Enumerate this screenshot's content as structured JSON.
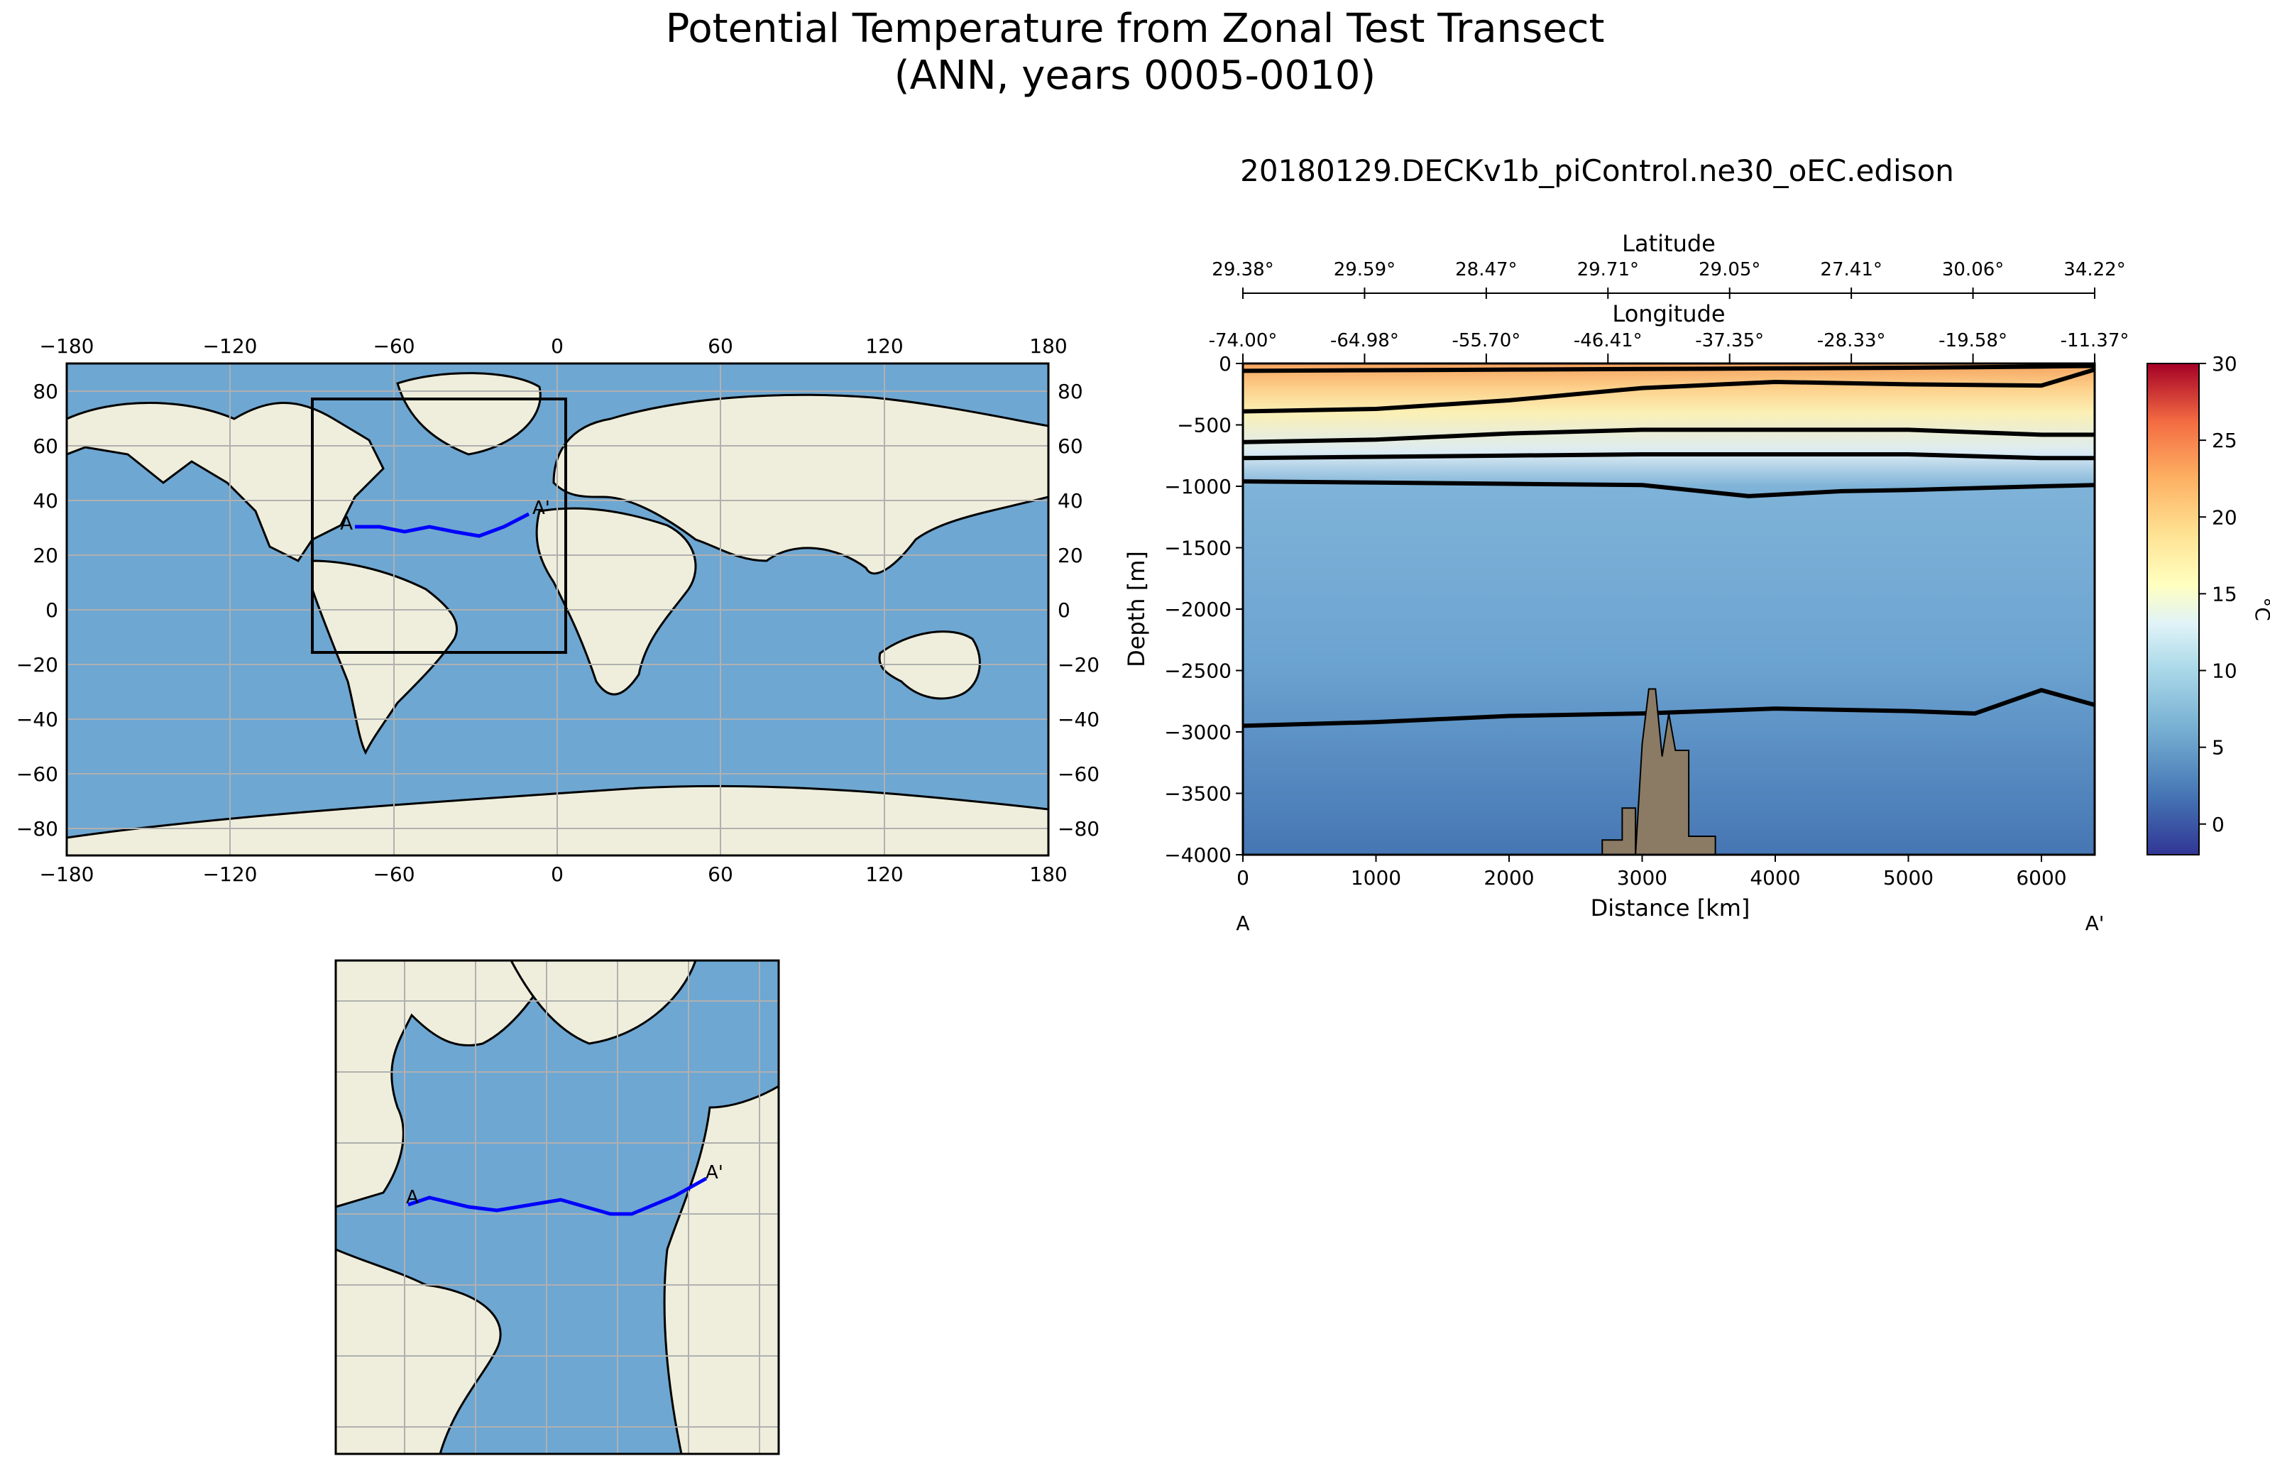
{
  "figure": {
    "title_line1": "Potential Temperature from Zonal Test Transect",
    "title_line2": "(ANN, years 0005-0010)",
    "section_title": "20180129.DECKv1b_piControl.ne30_oEC.edison"
  },
  "colors": {
    "ocean": "#6ea7d2",
    "land": "#efeedc",
    "transect": "#0000ff",
    "bathymetry": "#8b7b64",
    "grid": "#b0b0b0"
  },
  "world_map": {
    "lon_ticks": [
      "−180",
      "−120",
      "−60",
      "0",
      "60",
      "120",
      "180"
    ],
    "lat_ticks": [
      "80",
      "60",
      "40",
      "20",
      "0",
      "−20",
      "−40",
      "−60",
      "−80"
    ],
    "marker_a": "A",
    "marker_a_prime": "A'"
  },
  "inset_map": {
    "marker_a": "A",
    "marker_a_prime": "A'"
  },
  "section_labels": {
    "latitude_label": "Latitude",
    "longitude_label": "Longitude",
    "latitude_ticks": [
      "29.38°",
      "29.59°",
      "28.47°",
      "29.71°",
      "29.05°",
      "27.41°",
      "30.06°",
      "34.22°"
    ],
    "longitude_ticks": [
      "-74.00°",
      "-64.98°",
      "-55.70°",
      "-46.41°",
      "-37.35°",
      "-28.33°",
      "-19.58°",
      "-11.37°"
    ],
    "start_label": "A",
    "end_label": "A'",
    "colorbar_unit": "°C",
    "colorbar_ticks": [
      "30",
      "25",
      "20",
      "15",
      "10",
      "5",
      "0"
    ]
  },
  "chart_data": {
    "type": "heatmap",
    "title": "20180129.DECKv1b_piControl.ne30_oEC.edison",
    "xlabel": "Distance [km]",
    "ylabel": "Depth [m]",
    "xlim": [
      0,
      6400
    ],
    "ylim": [
      -4000,
      0
    ],
    "x_ticks": [
      0,
      1000,
      2000,
      3000,
      4000,
      5000,
      6000
    ],
    "y_ticks": [
      0,
      -500,
      -1000,
      -1500,
      -2000,
      -2500,
      -3000,
      -3500,
      -4000
    ],
    "colorbar": {
      "label": "°C",
      "range": [
        -2,
        30
      ],
      "ticks": [
        0,
        5,
        10,
        15,
        20,
        25,
        30
      ]
    },
    "transect_lon": [
      -74.0,
      -64.98,
      -55.7,
      -46.41,
      -37.35,
      -28.33,
      -19.58,
      -11.37
    ],
    "transect_lat": [
      29.38,
      29.59,
      28.47,
      29.71,
      29.05,
      27.41,
      30.06,
      34.22
    ],
    "contour_lines": [
      {
        "x": [
          0,
          1000,
          2000,
          3000,
          4000,
          5000,
          6000,
          6400
        ],
        "y": [
          -60,
          -55,
          -50,
          -45,
          -40,
          -35,
          -25,
          -20
        ]
      },
      {
        "x": [
          0,
          1000,
          2000,
          3000,
          4000,
          5000,
          6000,
          6400
        ],
        "y": [
          -390,
          -370,
          -300,
          -200,
          -150,
          -170,
          -180,
          -50
        ]
      },
      {
        "x": [
          0,
          1000,
          2000,
          3000,
          4000,
          5000,
          6000,
          6400
        ],
        "y": [
          -640,
          -620,
          -570,
          -540,
          -540,
          -540,
          -580,
          -580
        ]
      },
      {
        "x": [
          0,
          1000,
          2000,
          3000,
          4000,
          5000,
          6000,
          6400
        ],
        "y": [
          -770,
          -760,
          -750,
          -740,
          -740,
          -740,
          -770,
          -770
        ]
      },
      {
        "x": [
          0,
          1000,
          2000,
          3000,
          3800,
          4500,
          5000,
          6000,
          6400
        ],
        "y": [
          -960,
          -970,
          -980,
          -990,
          -1080,
          -1040,
          -1030,
          -1000,
          -990
        ]
      },
      {
        "x": [
          0,
          1000,
          2000,
          3000,
          4000,
          5000,
          5500,
          6000,
          6400
        ],
        "y": [
          -2950,
          -2920,
          -2870,
          -2850,
          -2810,
          -2830,
          -2850,
          -2660,
          -2780
        ]
      }
    ],
    "bathymetry": {
      "x": [
        2700,
        2700,
        2850,
        2850,
        2950,
        2950,
        3000,
        3050,
        3100,
        3150,
        3200,
        3250,
        3300,
        3350,
        3350,
        3550,
        3550
      ],
      "y": [
        -4000,
        -3880,
        -3880,
        -3620,
        -3620,
        -4000,
        -3100,
        -2650,
        -2650,
        -3200,
        -2850,
        -3150,
        -3150,
        -3150,
        -3850,
        -3850,
        -4000
      ]
    }
  }
}
